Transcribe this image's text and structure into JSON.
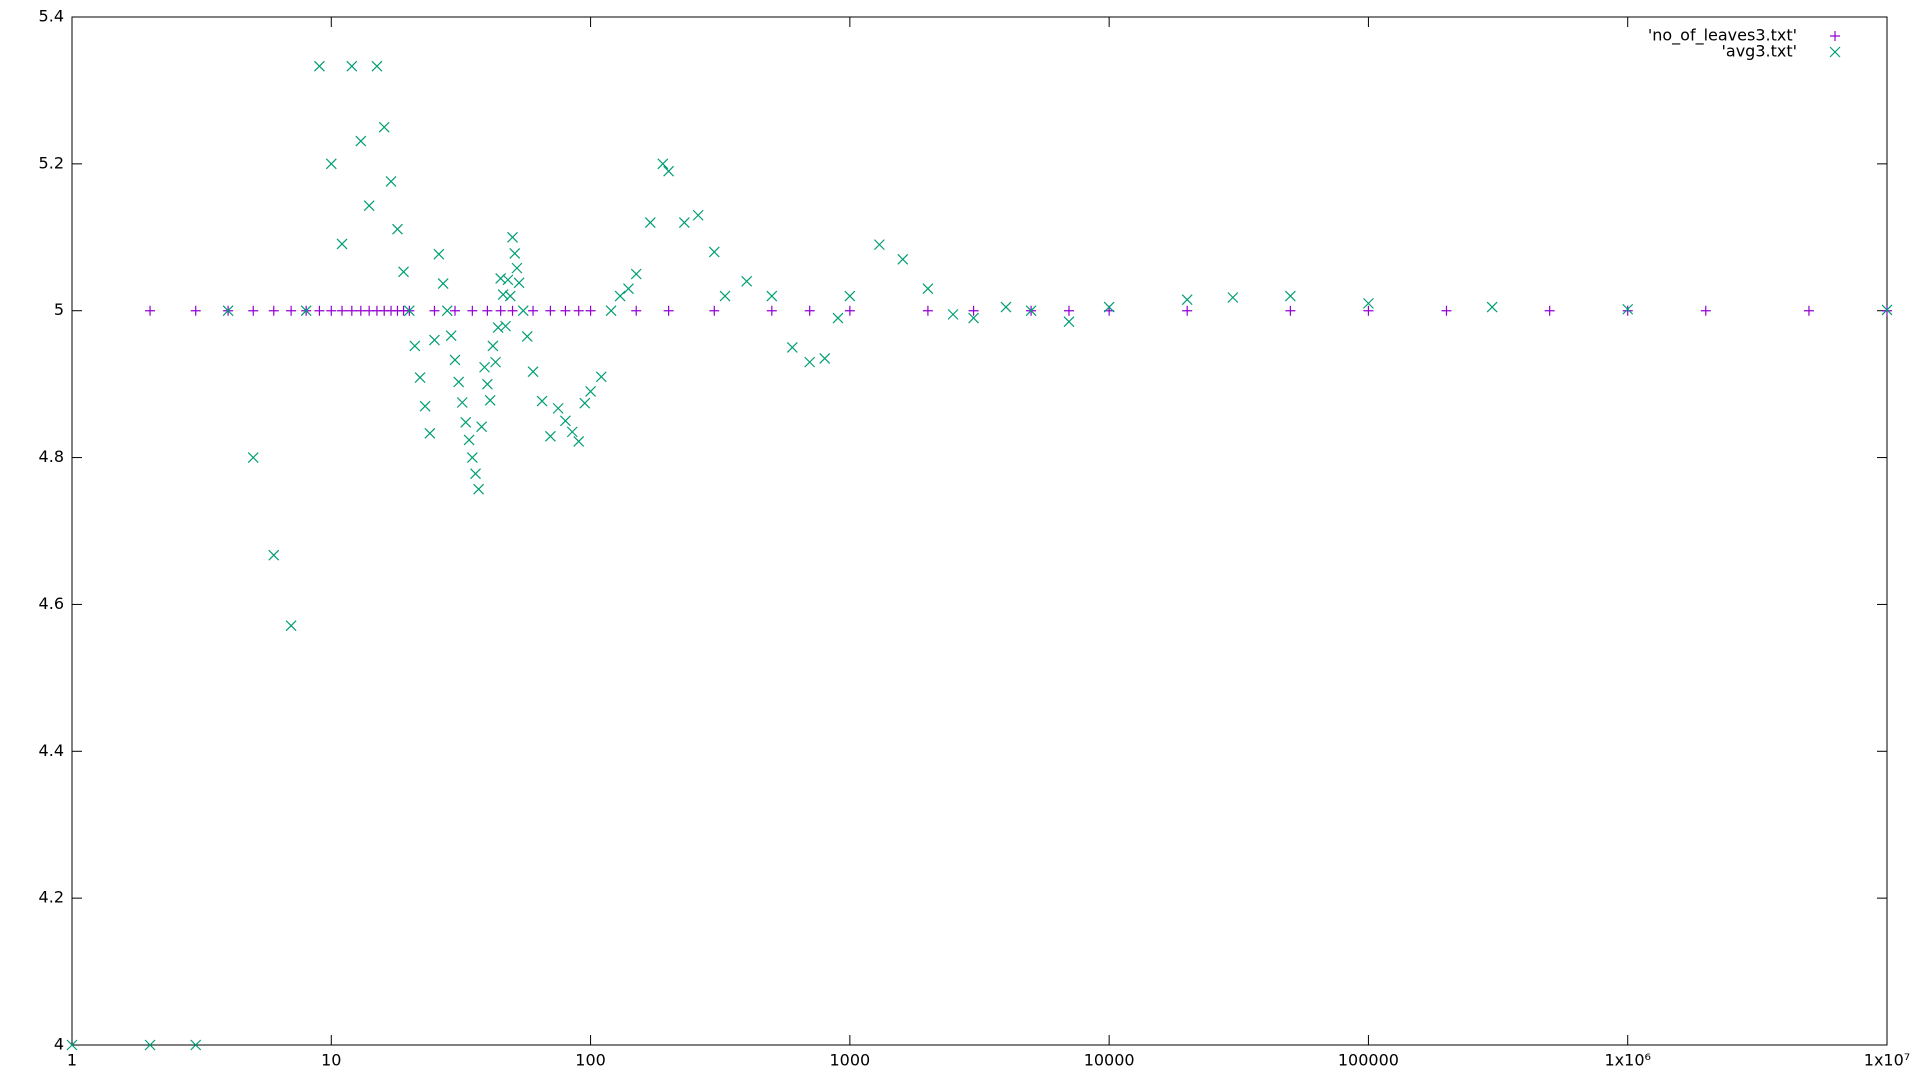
{
  "chart_data": {
    "type": "scatter",
    "xscale": "log",
    "legend": "top right",
    "xlim": [
      1,
      10000000
    ],
    "xticks": [
      1,
      10,
      100,
      1000,
      10000,
      100000,
      {
        "value": 1000000,
        "label": "1x10⁶"
      },
      {
        "value": 10000000,
        "label": "1x10⁷"
      }
    ],
    "ylim": [
      4,
      5.4
    ],
    "yticks": [
      4,
      4.2,
      4.4,
      4.6,
      4.8,
      5,
      5.2,
      5.4
    ],
    "series": [
      {
        "name": "'no_of_leaves3.txt'",
        "color": "#9400d3",
        "marker": "+",
        "x": [
          2,
          3,
          4,
          5,
          6,
          7,
          8,
          9,
          10,
          11,
          12,
          13,
          14,
          15,
          16,
          17,
          18,
          19,
          20,
          25,
          30,
          35,
          40,
          45,
          50,
          60,
          70,
          80,
          90,
          100,
          150,
          200,
          300,
          500,
          700,
          1000,
          2000,
          3000,
          5000,
          7000,
          10000,
          20000,
          50000,
          100000,
          200000,
          500000,
          1000000,
          2000000,
          5000000,
          10000000
        ],
        "values": [
          5,
          5,
          5,
          5,
          5,
          5,
          5,
          5,
          5,
          5,
          5,
          5,
          5,
          5,
          5,
          5,
          5,
          5,
          5,
          5,
          5,
          5,
          5,
          5,
          5,
          5,
          5,
          5,
          5,
          5,
          5,
          5,
          5,
          5,
          5,
          5,
          5,
          5,
          5,
          5,
          5,
          5,
          5,
          5,
          5,
          5,
          5,
          5,
          5,
          5
        ]
      },
      {
        "name": "'avg3.txt'",
        "color": "#009e73",
        "marker": "x",
        "x": [
          1,
          2,
          3,
          4,
          5,
          6,
          7,
          8,
          9,
          10,
          11,
          12,
          13,
          14,
          15,
          16,
          17,
          18,
          19,
          20,
          21,
          22,
          23,
          24,
          25,
          26,
          27,
          28,
          29,
          30,
          31,
          32,
          33,
          34,
          35,
          36,
          37,
          38,
          39,
          40,
          41,
          42,
          43,
          44,
          45,
          46,
          47,
          48,
          49,
          50,
          51,
          52,
          53,
          55,
          57,
          60,
          65,
          70,
          75,
          80,
          85,
          90,
          95,
          100,
          110,
          120,
          130,
          140,
          150,
          170,
          190,
          200,
          230,
          260,
          300,
          330,
          400,
          500,
          600,
          700,
          800,
          900,
          1000,
          1300,
          1600,
          2000,
          2500,
          3000,
          4000,
          5000,
          7000,
          10000,
          20000,
          30000,
          50000,
          100000,
          300000,
          1000000,
          10000000
        ],
        "values": [
          4,
          4,
          4,
          5,
          4.8,
          4.667,
          4.571,
          5,
          5.333,
          5.2,
          5.091,
          5.333,
          5.231,
          5.143,
          5.333,
          5.25,
          5.176,
          5.111,
          5.053,
          5,
          4.952,
          4.909,
          4.87,
          4.833,
          4.96,
          5.077,
          5.037,
          5,
          4.966,
          4.933,
          4.903,
          4.875,
          4.848,
          4.824,
          4.8,
          4.778,
          4.757,
          4.842,
          4.923,
          4.9,
          4.878,
          4.952,
          4.93,
          4.977,
          5.044,
          5.022,
          4.979,
          5.042,
          5.02,
          5.1,
          5.078,
          5.058,
          5.038,
          5,
          4.965,
          4.917,
          4.877,
          4.829,
          4.867,
          4.85,
          4.835,
          4.822,
          4.874,
          4.89,
          4.91,
          5,
          5.02,
          5.03,
          5.05,
          5.12,
          5.2,
          5.19,
          5.12,
          5.13,
          5.08,
          5.02,
          5.04,
          5.02,
          4.95,
          4.93,
          4.935,
          4.99,
          5.02,
          5.09,
          5.07,
          5.03,
          4.995,
          4.99,
          5.005,
          5,
          4.985,
          5.005,
          5.015,
          5.018,
          5.02,
          5.01,
          5.005,
          5.002,
          5.001
        ]
      }
    ]
  }
}
